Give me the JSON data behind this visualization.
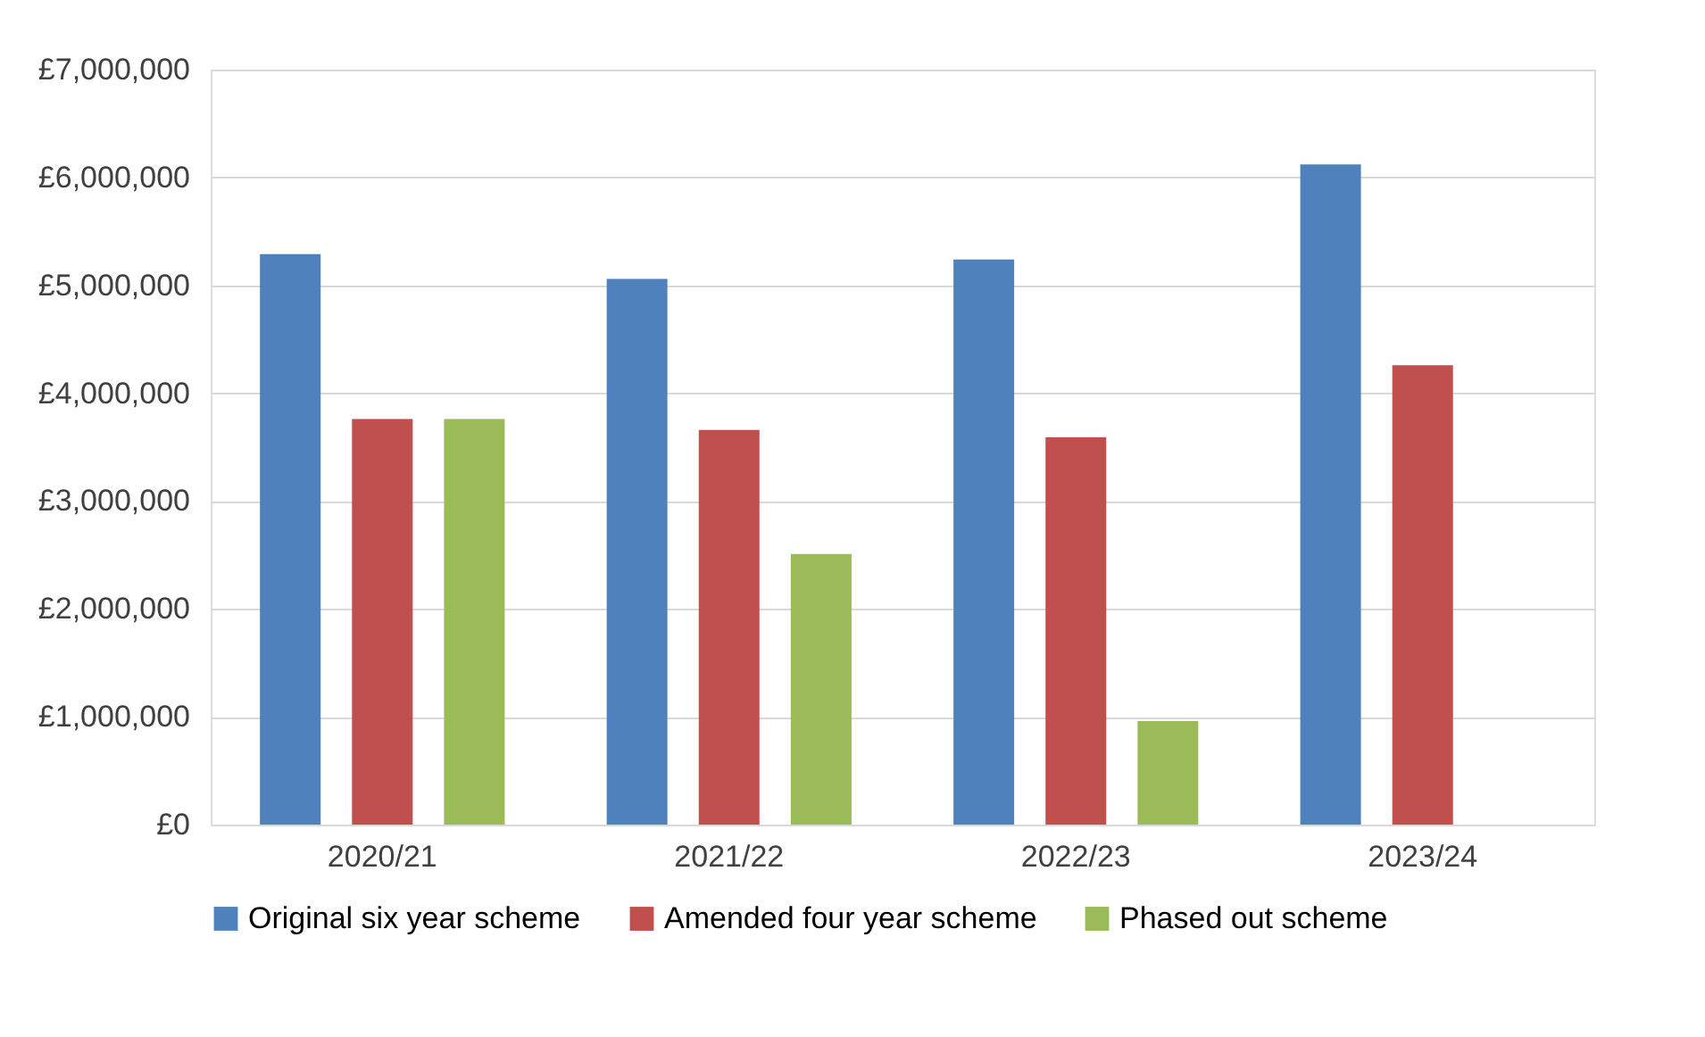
{
  "chart_data": {
    "type": "bar",
    "categories": [
      "2020/21",
      "2021/22",
      "2022/23",
      "2023/24"
    ],
    "series": [
      {
        "name": "Original six year scheme",
        "color": "#4f81bd",
        "values": [
          5290000,
          5060000,
          5240000,
          6120000
        ]
      },
      {
        "name": "Amended four year scheme",
        "color": "#c0504d",
        "values": [
          3760000,
          3660000,
          3590000,
          4260000
        ]
      },
      {
        "name": "Phased out scheme",
        "color": "#9bbb59",
        "values": [
          3760000,
          2510000,
          960000,
          null
        ]
      }
    ],
    "ylim": [
      0,
      7000000
    ],
    "yticks": [
      {
        "value": 0,
        "label": "£0"
      },
      {
        "value": 1000000,
        "label": "£1,000,000"
      },
      {
        "value": 2000000,
        "label": "£2,000,000"
      },
      {
        "value": 3000000,
        "label": "£3,000,000"
      },
      {
        "value": 4000000,
        "label": "£4,000,000"
      },
      {
        "value": 5000000,
        "label": "£5,000,000"
      },
      {
        "value": 6000000,
        "label": "£6,000,000"
      },
      {
        "value": 7000000,
        "label": "£7,000,000"
      }
    ],
    "grid": "y",
    "legend": "bottom"
  }
}
